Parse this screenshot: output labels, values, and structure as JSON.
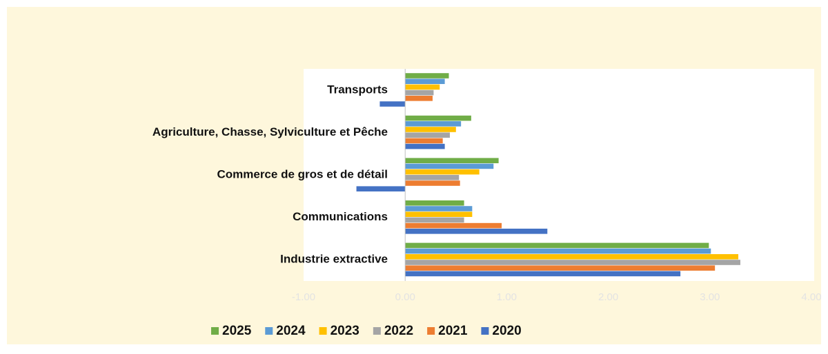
{
  "chart_data": {
    "type": "bar",
    "orientation": "horizontal",
    "categories": [
      "Transports",
      "Agriculture, Chasse, Sylviculture et Pêche",
      "Commerce de gros et de détail",
      "Communications",
      "Industrie extractive"
    ],
    "series": [
      {
        "name": "2025",
        "color": "#70ad47",
        "values": [
          0.43,
          0.65,
          0.92,
          0.58,
          2.99
        ]
      },
      {
        "name": "2024",
        "color": "#5b9bd5",
        "values": [
          0.39,
          0.55,
          0.87,
          0.66,
          3.01
        ]
      },
      {
        "name": "2023",
        "color": "#ffc000",
        "values": [
          0.34,
          0.5,
          0.73,
          0.66,
          3.28
        ]
      },
      {
        "name": "2022",
        "color": "#a5a5a5",
        "values": [
          0.28,
          0.44,
          0.53,
          0.58,
          3.3
        ]
      },
      {
        "name": "2021",
        "color": "#ed7d31",
        "values": [
          0.27,
          0.37,
          0.54,
          0.95,
          3.05
        ]
      },
      {
        "name": "2020",
        "color": "#4472c4",
        "values": [
          -0.25,
          0.39,
          -0.48,
          1.4,
          2.71
        ]
      }
    ],
    "xlim": [
      -1,
      4
    ],
    "xticks": [
      {
        "value": -1,
        "label": "-1.00"
      },
      {
        "value": 0,
        "label": "0.00"
      },
      {
        "value": 1,
        "label": "1.00"
      },
      {
        "value": 2,
        "label": "2.00"
      },
      {
        "value": 3,
        "label": "3.00"
      },
      {
        "value": 4,
        "label": "4.00"
      }
    ],
    "legend": "bottom",
    "grid": false
  }
}
